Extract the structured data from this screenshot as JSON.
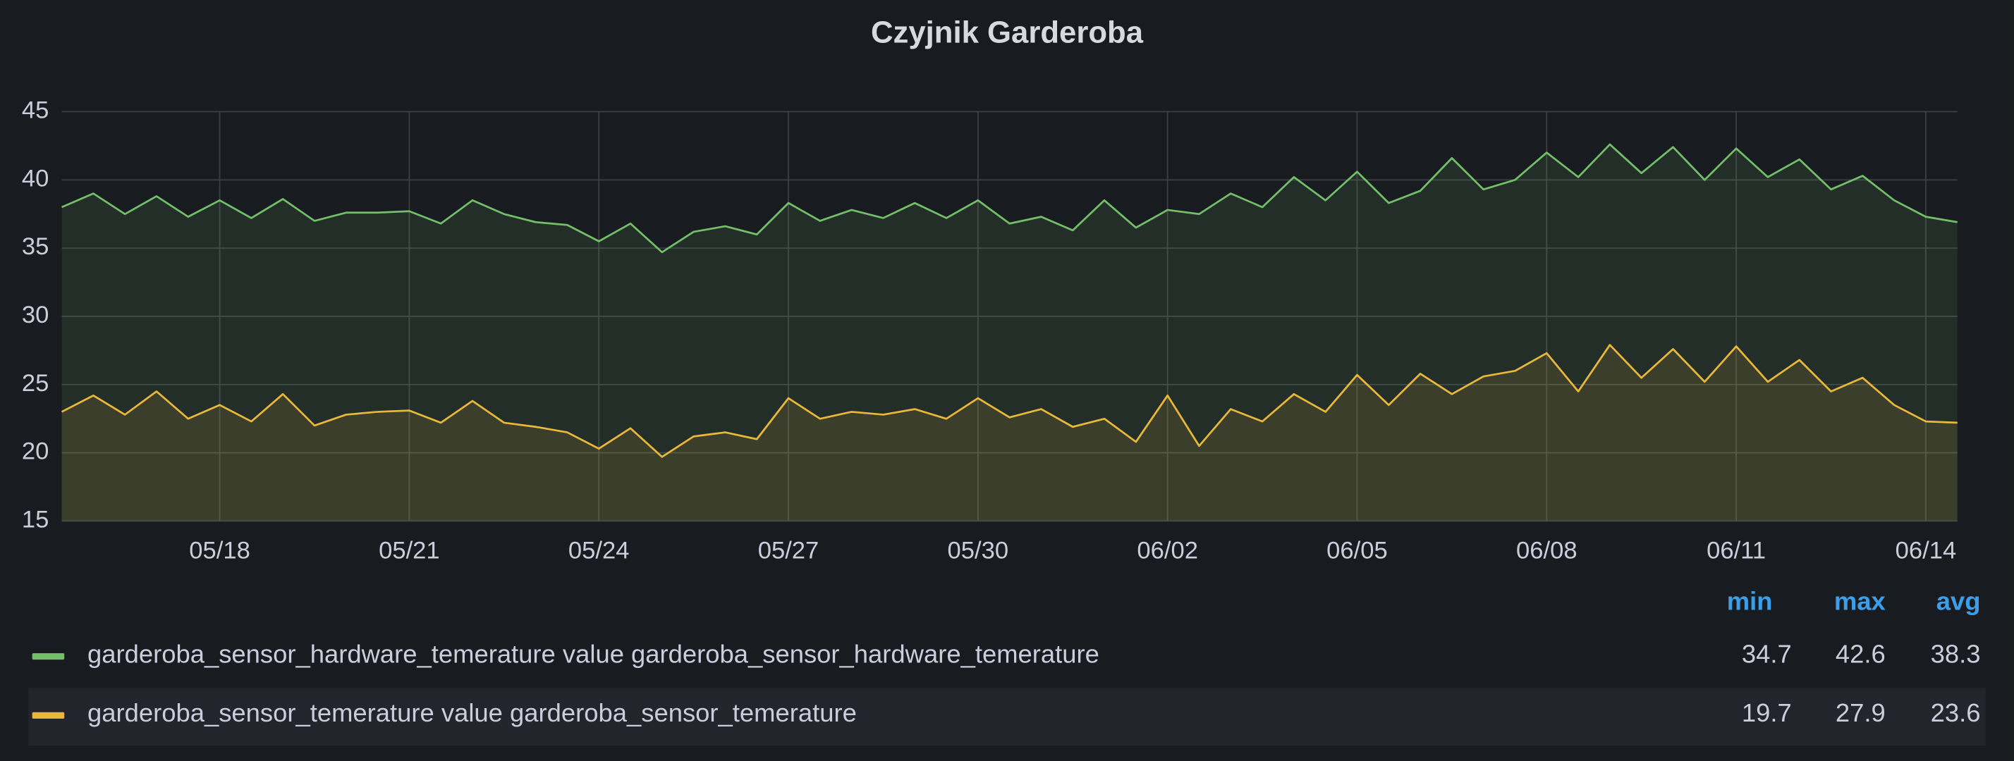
{
  "chart_data": {
    "type": "line",
    "title": "Czyjnik Garderoba",
    "x": [
      15.5,
      16,
      16.5,
      17,
      17.5,
      18,
      18.5,
      19,
      19.5,
      20,
      20.5,
      21,
      21.5,
      22,
      22.5,
      23,
      23.5,
      24,
      24.5,
      25,
      25.5,
      26,
      26.5,
      27,
      27.5,
      28,
      28.5,
      29,
      29.5,
      30,
      30.5,
      31,
      31.5,
      32,
      32.5,
      33,
      33.5,
      34,
      34.5,
      35,
      35.5,
      36,
      36.5,
      37,
      37.5,
      38,
      38.5,
      39,
      39.5,
      40,
      40.5,
      41,
      41.5,
      42,
      42.5,
      43,
      43.5,
      44,
      44.5,
      45,
      45.5
    ],
    "xlim": [
      15.5,
      45.5
    ],
    "xticks": [
      {
        "value": 18,
        "label": "05/18"
      },
      {
        "value": 21,
        "label": "05/21"
      },
      {
        "value": 24,
        "label": "05/24"
      },
      {
        "value": 27,
        "label": "05/27"
      },
      {
        "value": 30,
        "label": "05/30"
      },
      {
        "value": 33,
        "label": "06/02"
      },
      {
        "value": 36,
        "label": "06/05"
      },
      {
        "value": 39,
        "label": "06/08"
      },
      {
        "value": 42,
        "label": "06/11"
      },
      {
        "value": 45,
        "label": "06/14"
      }
    ],
    "ylim": [
      15,
      45
    ],
    "yticks": [
      15,
      20,
      25,
      30,
      35,
      40,
      45
    ],
    "grid": true,
    "legend_columns": [
      "min",
      "max",
      "avg"
    ],
    "series": [
      {
        "name": "garderoba_sensor_hardware_temerature value garderoba_sensor_hardware_temerature",
        "color": "#73bf69",
        "values": [
          38.0,
          39.0,
          37.5,
          38.8,
          37.3,
          38.5,
          37.2,
          38.6,
          37.0,
          37.6,
          37.6,
          37.7,
          36.8,
          38.5,
          37.5,
          36.9,
          36.7,
          35.5,
          36.8,
          34.7,
          36.2,
          36.6,
          36.0,
          38.3,
          37.0,
          37.8,
          37.2,
          38.3,
          37.2,
          38.5,
          36.8,
          37.3,
          36.3,
          38.5,
          36.5,
          37.8,
          37.5,
          39.0,
          38.0,
          40.2,
          38.5,
          40.6,
          38.3,
          39.2,
          41.6,
          39.3,
          40.0,
          42.0,
          40.2,
          42.6,
          40.5,
          42.4,
          40.0,
          42.3,
          40.2,
          41.5,
          39.3,
          40.3,
          38.5,
          37.3,
          36.9
        ],
        "min": 34.7,
        "max": 42.6,
        "avg": 38.3
      },
      {
        "name": "garderoba_sensor_temerature value garderoba_sensor_temerature",
        "color": "#eab839",
        "values": [
          23.0,
          24.2,
          22.8,
          24.5,
          22.5,
          23.5,
          22.3,
          24.3,
          22.0,
          22.8,
          23.0,
          23.1,
          22.2,
          23.8,
          22.2,
          21.9,
          21.5,
          20.3,
          21.8,
          19.7,
          21.2,
          21.5,
          21.0,
          24.0,
          22.5,
          23.0,
          22.8,
          23.2,
          22.5,
          24.0,
          22.6,
          23.2,
          21.9,
          22.5,
          20.8,
          24.2,
          20.5,
          23.2,
          22.3,
          24.3,
          23.0,
          25.7,
          23.5,
          25.8,
          24.3,
          25.6,
          26.0,
          27.3,
          24.5,
          27.9,
          25.5,
          27.6,
          25.2,
          27.8,
          25.2,
          26.8,
          24.5,
          25.5,
          23.5,
          22.3,
          22.2
        ],
        "min": 19.7,
        "max": 27.9,
        "avg": 23.6
      }
    ]
  }
}
